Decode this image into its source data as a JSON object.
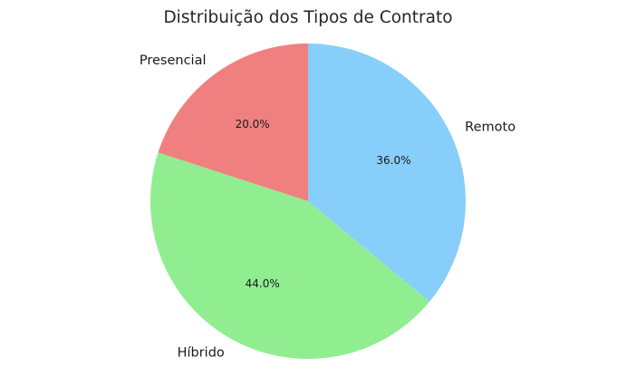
{
  "chart_data": {
    "type": "pie",
    "title": "Distribuição dos Tipos de Contrato",
    "start_angle_deg": 90,
    "direction": "clockwise",
    "legend": "none",
    "slices": [
      {
        "label": "Remoto",
        "value": 36.0,
        "percent_label": "36.0%",
        "color": "#87CEFA"
      },
      {
        "label": "Híbrido",
        "value": 44.0,
        "percent_label": "44.0%",
        "color": "#90EE90"
      },
      {
        "label": "Presencial",
        "value": 20.0,
        "percent_label": "20.0%",
        "color": "#F08080"
      }
    ]
  }
}
